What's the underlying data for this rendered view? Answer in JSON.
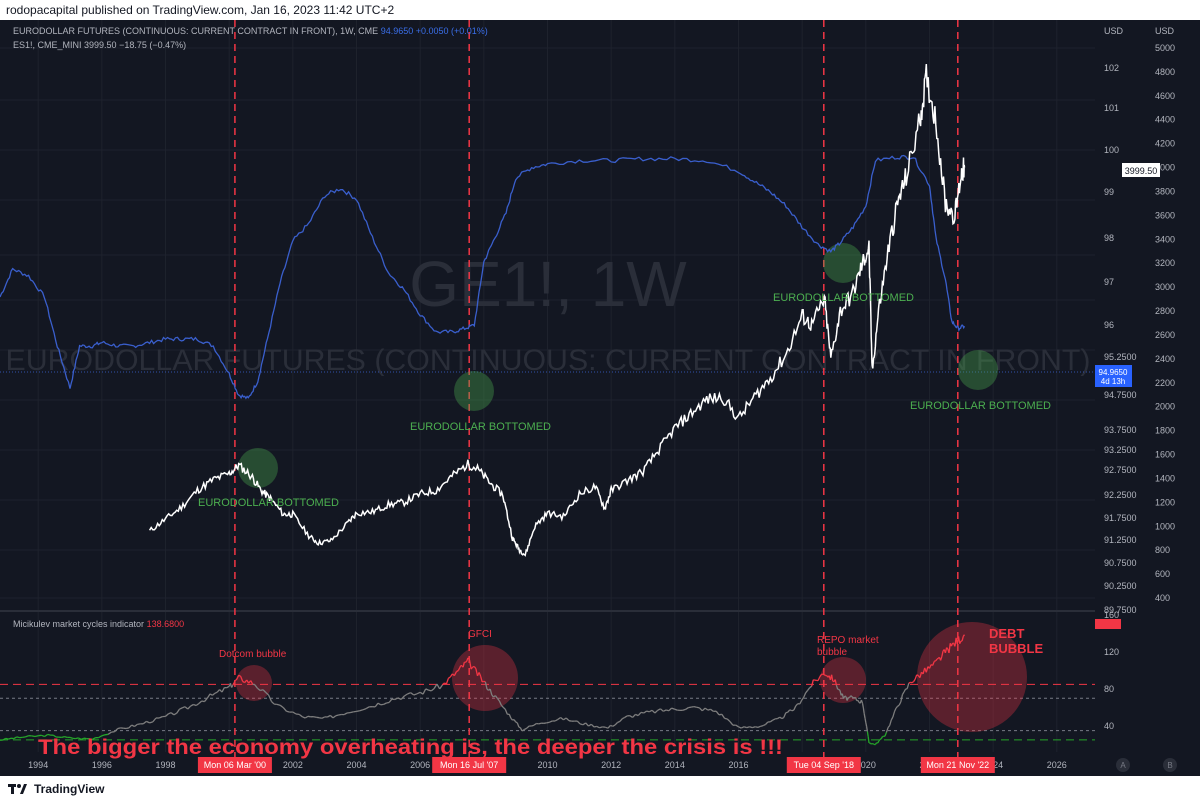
{
  "header": {
    "text": "rodopacapital published on TradingView.com, Jan 16, 2023 11:42 UTC+2"
  },
  "footer": {
    "brand": "TradingView"
  },
  "legend": {
    "line1_name": "EURODOLLAR FUTURES (CONTINUOUS: CURRENT CONTRACT IN FRONT), 1W, CME",
    "line1_values": "94.9650  +0.0050 (+0.01%)",
    "line2_name": "ES1!, CME_MINI",
    "line2_values": "3999.50  −18.75 (−0.47%)",
    "indicator_name": "Micikulev market cycles indicator",
    "indicator_value": "138.6800"
  },
  "watermark": {
    "symbol": "GE1!, 1W",
    "name": "EURODOLLAR FUTURES (CONTINUOUS: CURRENT CONTRACT IN FRONT)"
  },
  "colors": {
    "background": "#131722",
    "eurodollar": "#3a5fcd",
    "es": "#ffffff",
    "marker_red": "#f23645",
    "bottom_green": "#4caf50",
    "indicator_grey": "#7e7e7e",
    "indicator_green": "#26a62a",
    "indicator_red": "#f23645"
  },
  "chart_data": [
    {
      "type": "line",
      "title": "EURODOLLAR FUTURES (CONTINUOUS: CURRENT CONTRACT IN FRONT), 1W, CME",
      "x_axis": {
        "ticks": [
          "1994",
          "1996",
          "1998",
          "2000",
          "2002",
          "2004",
          "2006",
          "2008",
          "2010",
          "2012",
          "2014",
          "2016",
          "2018",
          "2020",
          "2022",
          "2024",
          "2026"
        ],
        "range": [
          1992.8,
          2027.2
        ]
      },
      "y_axes": [
        {
          "side": "right-inner",
          "unit": "USD",
          "ticks": [
            102.0,
            101.0,
            100.0,
            99.0,
            98.0,
            97.0,
            96.0,
            95.25,
            94.75,
            93.75,
            93.25,
            92.75,
            92.25,
            91.75,
            91.25,
            90.75,
            90.25,
            89.75
          ]
        },
        {
          "side": "right-outer",
          "unit": "USD",
          "ticks": [
            5000,
            4800,
            4600,
            4400,
            4200,
            4000,
            3800,
            3600,
            3400,
            3200,
            3000,
            2800,
            2600,
            2400,
            2200,
            2000,
            1800,
            1600,
            1400,
            1200,
            1000,
            800,
            600,
            400
          ]
        },
        {
          "side": "indicator",
          "ticks": [
            160.0,
            120.0,
            80.0,
            40.0
          ]
        }
      ],
      "series": [
        {
          "name": "ES1!, CME_MINI",
          "color": "#ffffff",
          "x": [
            1997.5,
            1998.0,
            1998.5,
            1999.0,
            1999.5,
            2000.0,
            2000.3,
            2000.7,
            2001.0,
            2001.3,
            2001.7,
            2002.0,
            2002.5,
            2002.8,
            2003.2,
            2003.7,
            2004.0,
            2004.5,
            2005.0,
            2005.5,
            2006.0,
            2006.5,
            2007.0,
            2007.5,
            2007.8,
            2008.2,
            2008.6,
            2008.9,
            2009.1,
            2009.3,
            2009.6,
            2010.0,
            2010.5,
            2011.0,
            2011.5,
            2011.8,
            2012.0,
            2012.5,
            2013.0,
            2013.5,
            2014.0,
            2014.5,
            2015.0,
            2015.5,
            2016.0,
            2016.5,
            2017.0,
            2017.5,
            2018.0,
            2018.3,
            2018.7,
            2018.9,
            2019.2,
            2019.6,
            2019.9,
            2020.1,
            2020.2,
            2020.4,
            2020.7,
            2021.0,
            2021.3,
            2021.7,
            2021.9,
            2022.2,
            2022.5,
            2022.8,
            2023.0,
            2023.1
          ],
          "y": [
            960,
            1060,
            1160,
            1300,
            1390,
            1440,
            1510,
            1420,
            1300,
            1230,
            1100,
            1100,
            920,
            860,
            880,
            1020,
            1110,
            1120,
            1180,
            1200,
            1270,
            1300,
            1420,
            1520,
            1480,
            1360,
            1260,
            900,
            810,
            760,
            1000,
            1110,
            1080,
            1270,
            1330,
            1150,
            1300,
            1380,
            1460,
            1640,
            1820,
            1940,
            2060,
            2080,
            1900,
            2080,
            2240,
            2440,
            2760,
            2680,
            2900,
            2400,
            2800,
            2950,
            3200,
            3330,
            2290,
            2800,
            3300,
            3700,
            3950,
            4400,
            4750,
            4400,
            3700,
            3600,
            3950,
            3999.5
          ]
        },
        {
          "name": "EURODOLLAR FUTURES (CONTINUOUS: CURRENT CONTRACT IN FRONT)",
          "color": "#3a5fcd",
          "x": [
            1992.8,
            1993.2,
            1993.7,
            1994.2,
            1994.6,
            1995.0,
            1995.3,
            1995.7,
            1996.0,
            1996.5,
            1997.0,
            1997.5,
            1998.0,
            1998.5,
            1999.0,
            1999.5,
            2000.0,
            2000.3,
            2000.6,
            2000.9,
            2001.2,
            2001.6,
            2002.0,
            2002.5,
            2003.0,
            2003.5,
            2004.0,
            2004.5,
            2005.0,
            2005.5,
            2006.0,
            2006.5,
            2007.0,
            2007.4,
            2007.7,
            2008.0,
            2008.3,
            2008.7,
            2009.0,
            2009.5,
            2010.0,
            2011.0,
            2012.0,
            2013.0,
            2014.0,
            2015.0,
            2016.0,
            2016.5,
            2017.0,
            2017.5,
            2018.0,
            2018.5,
            2018.9,
            2019.2,
            2019.6,
            2020.0,
            2020.3,
            2021.0,
            2021.5,
            2022.0,
            2022.2,
            2022.5,
            2022.7,
            2022.9,
            2023.1
          ],
          "y": [
            95.8,
            96.6,
            96.4,
            95.8,
            94.4,
            93.2,
            94.4,
            94.4,
            94.5,
            94.4,
            94.4,
            94.5,
            94.6,
            94.6,
            94.6,
            94.4,
            93.6,
            93.0,
            92.9,
            93.4,
            94.6,
            96.2,
            97.4,
            97.9,
            98.7,
            98.9,
            98.6,
            97.5,
            96.5,
            96.0,
            95.3,
            94.8,
            94.8,
            94.9,
            95.0,
            96.8,
            97.4,
            98.2,
            99.2,
            99.5,
            99.6,
            99.7,
            99.7,
            99.75,
            99.75,
            99.7,
            99.4,
            99.1,
            98.8,
            98.4,
            97.8,
            97.3,
            97.1,
            97.35,
            97.8,
            98.4,
            99.7,
            99.8,
            99.8,
            99.0,
            97.5,
            96.3,
            95.1,
            94.9,
            94.965
          ]
        }
      ]
    },
    {
      "type": "line",
      "title": "Micikulev market cycles indicator",
      "series": [
        {
          "name": "Micikulev market cycles indicator",
          "x": [
            1992.8,
            1993.5,
            1994.3,
            1995.0,
            1995.7,
            1996.5,
            1997.2,
            1998.0,
            1998.7,
            1999.4,
            2000.0,
            2000.3,
            2000.8,
            2001.5,
            2002.3,
            2003.0,
            2003.7,
            2004.5,
            2005.2,
            2006.0,
            2006.7,
            2007.2,
            2007.5,
            2007.9,
            2008.3,
            2008.8,
            2009.2,
            2009.8,
            2010.5,
            2011.2,
            2011.9,
            2012.5,
            2013.2,
            2013.9,
            2014.6,
            2015.3,
            2016.0,
            2016.7,
            2017.3,
            2017.8,
            2018.3,
            2018.7,
            2019.0,
            2019.3,
            2019.6,
            2019.9,
            2020.1,
            2020.3,
            2020.6,
            2021.0,
            2021.4,
            2021.8,
            2022.2,
            2022.5,
            2022.8,
            2023.1
          ],
          "y": [
            25,
            28,
            30,
            27,
            26,
            36,
            42,
            50,
            60,
            72,
            82,
            92,
            86,
            62,
            50,
            48,
            55,
            62,
            70,
            76,
            84,
            100,
            110,
            92,
            74,
            52,
            36,
            44,
            48,
            42,
            38,
            50,
            55,
            58,
            60,
            56,
            38,
            40,
            48,
            60,
            85,
            98,
            90,
            70,
            70,
            66,
            22,
            20,
            30,
            62,
            88,
            98,
            108,
            120,
            130,
            138.68
          ]
        }
      ],
      "reference_lines": [
        85,
        70,
        35,
        25
      ]
    }
  ],
  "annotations": {
    "markers": [
      {
        "year": 2000.18,
        "label": "Mon 06 Mar '00"
      },
      {
        "year": 2007.54,
        "label": "Mon 16 Jul '07"
      },
      {
        "year": 2018.68,
        "label": "Tue 04 Sep '18"
      },
      {
        "year": 2022.89,
        "label": "Mon 21 Nov '22"
      }
    ],
    "bottoms": [
      {
        "text": "EURODOLLAR BOTTOMED"
      },
      {
        "text": "EURODOLLAR BOTTOMED"
      },
      {
        "text": "EURODOLLAR BOTTOMED"
      },
      {
        "text": "EURODOLLAR BOTTOMED"
      }
    ],
    "bubbles": [
      {
        "text": "Dotcom bubble"
      },
      {
        "text": "GFCI"
      },
      {
        "text": "REPO market bubble"
      },
      {
        "text": "DEBT BUBBLE"
      }
    ],
    "caption": "The bigger the economy overheating is, the deeper the crisis is !!!"
  },
  "price_labels": {
    "es_last": "3999.50",
    "ge_last": "94.9650",
    "ge_countdown": "4d 13h"
  },
  "scale_buttons": {
    "auto": "A",
    "log": "B"
  }
}
